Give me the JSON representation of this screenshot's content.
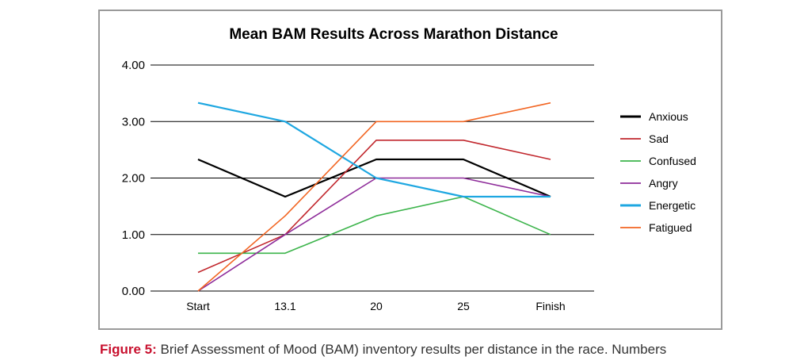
{
  "chart_data": {
    "type": "line",
    "title": "Mean BAM Results Across Marathon Distance",
    "xlabel": "",
    "ylabel": "",
    "categories": [
      "Start",
      "13.1",
      "20",
      "25",
      "Finish"
    ],
    "ylim": [
      0,
      4
    ],
    "yticks": [
      "0.00",
      "1.00",
      "2.00",
      "3.00",
      "4.00"
    ],
    "grid": "horizontal",
    "legend_position": "right",
    "series": [
      {
        "name": "Anxious",
        "color": "#000000",
        "values": [
          2.33,
          1.67,
          2.33,
          2.33,
          1.67
        ]
      },
      {
        "name": "Sad",
        "color": "#c1272d",
        "values": [
          0.33,
          1.0,
          2.67,
          2.67,
          2.33
        ]
      },
      {
        "name": "Confused",
        "color": "#3cb44b",
        "values": [
          0.67,
          0.67,
          1.33,
          1.67,
          1.0
        ]
      },
      {
        "name": "Angry",
        "color": "#8e2c9a",
        "values": [
          0.0,
          1.0,
          2.0,
          2.0,
          1.67
        ]
      },
      {
        "name": "Energetic",
        "color": "#1ea7e1",
        "values": [
          3.33,
          3.0,
          2.0,
          1.67,
          1.67
        ]
      },
      {
        "name": "Fatigued",
        "color": "#f26522",
        "values": [
          0.0,
          1.33,
          3.0,
          3.0,
          3.33
        ]
      }
    ]
  },
  "caption": {
    "label": "Figure 5:",
    "text": " Brief Assessment of Mood (BAM) inventory results per distance in the race. Numbers"
  }
}
